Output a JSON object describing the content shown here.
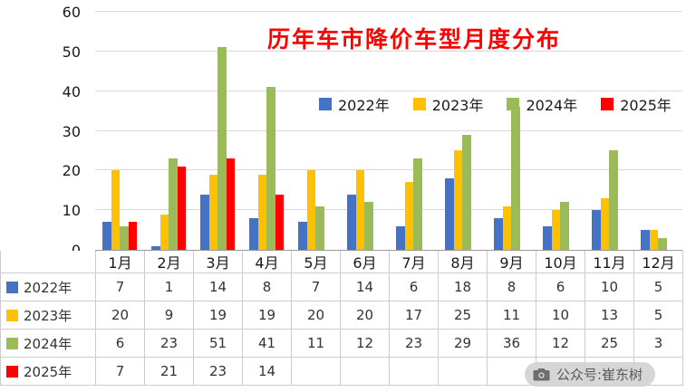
{
  "title": "历年车市降价车型月度分布",
  "watermark": {
    "text": "公众号:崔东树",
    "icon": "camera-icon"
  },
  "colors": {
    "title": "#ff0000",
    "series_2022": "#4472C4",
    "series_2023": "#FFC000",
    "series_2024": "#9BBB59",
    "series_2025": "#FF0000",
    "gridline": "#d9d9d9"
  },
  "chart_data": {
    "type": "bar",
    "title": "历年车市降价车型月度分布",
    "categories": [
      "1月",
      "2月",
      "3月",
      "4月",
      "5月",
      "6月",
      "7月",
      "8月",
      "9月",
      "10月",
      "11月",
      "12月"
    ],
    "series": [
      {
        "name": "2022年",
        "color": "#4472C4",
        "values": [
          7,
          1,
          14,
          8,
          7,
          14,
          6,
          18,
          8,
          6,
          10,
          5
        ]
      },
      {
        "name": "2023年",
        "color": "#FFC000",
        "values": [
          20,
          9,
          19,
          19,
          20,
          20,
          17,
          25,
          11,
          10,
          13,
          5
        ]
      },
      {
        "name": "2024年",
        "color": "#9BBB59",
        "values": [
          6,
          23,
          51,
          41,
          11,
          12,
          23,
          29,
          36,
          12,
          25,
          3
        ]
      },
      {
        "name": "2025年",
        "color": "#FF0000",
        "values": [
          7,
          21,
          23,
          14,
          null,
          null,
          null,
          null,
          null,
          null,
          null,
          null
        ]
      }
    ],
    "ylim": [
      0,
      60
    ],
    "ytick_step": 10,
    "yticks": [
      0,
      10,
      20,
      30,
      40,
      50,
      60
    ],
    "grid": true,
    "legend_position": "inside-upper-middle",
    "data_table_shown": true
  }
}
